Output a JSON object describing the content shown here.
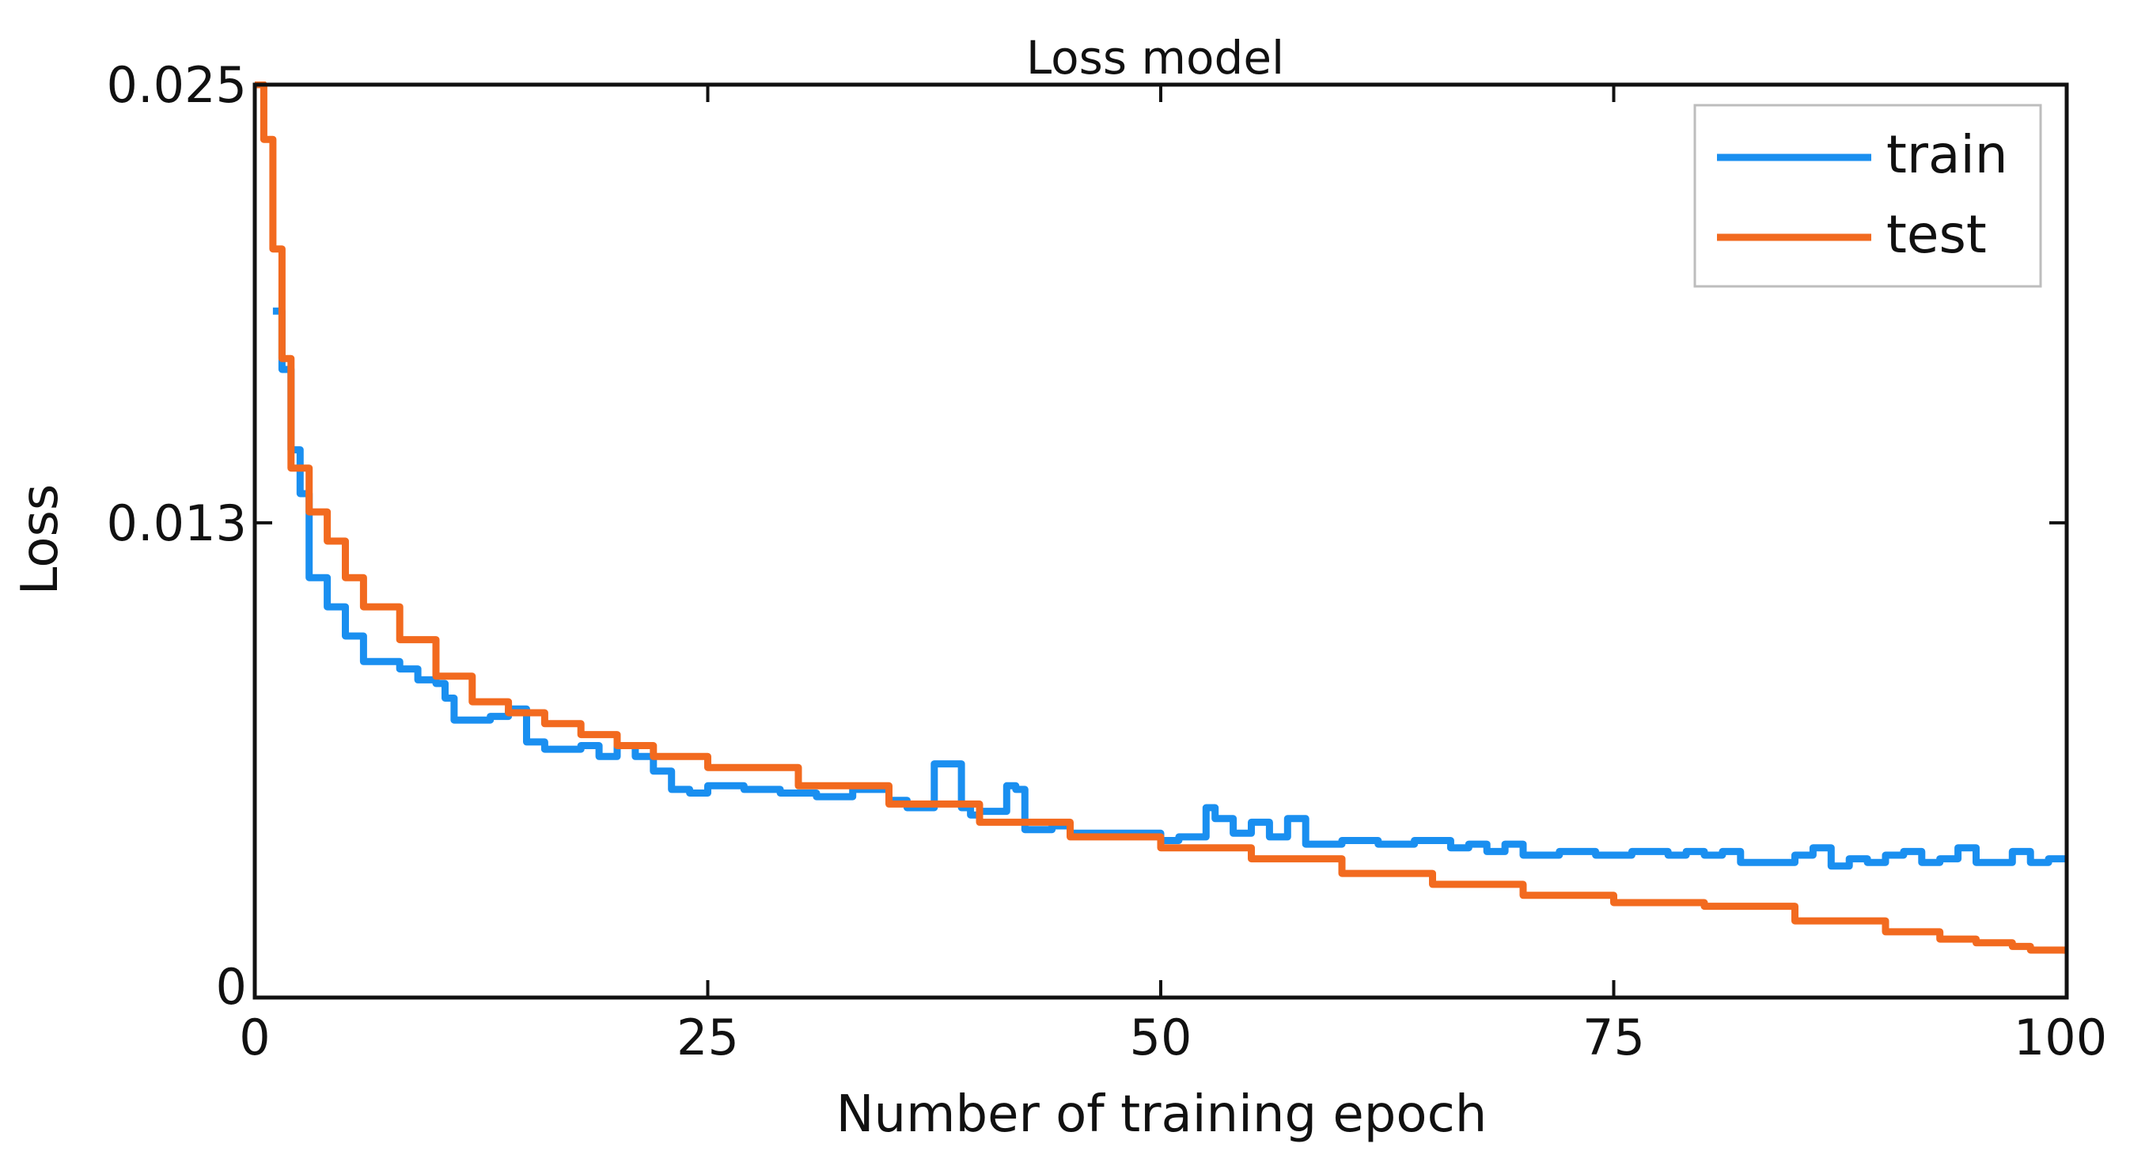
{
  "chart_data": {
    "type": "line",
    "title": "Loss model",
    "xlabel": "Number of training epoch",
    "ylabel": "Loss",
    "xlim": [
      0,
      100
    ],
    "ylim": [
      0,
      0.025
    ],
    "xticks": [
      0,
      25,
      50,
      75,
      100
    ],
    "xtick_labels": [
      "0",
      "25",
      "50",
      "75",
      "100"
    ],
    "yticks": [
      0,
      0.013,
      0.025
    ],
    "ytick_labels": [
      "0",
      "0.013",
      "0.025"
    ],
    "grid": false,
    "legend": {
      "position": "top-right",
      "entries": [
        "train",
        "test"
      ]
    },
    "series": [
      {
        "name": "train",
        "color": "#1a8ff0",
        "x": [
          1,
          1.5,
          2,
          2.5,
          3,
          4,
          5,
          6,
          8,
          9,
          10,
          10.5,
          11,
          12,
          13,
          14,
          15,
          16,
          17,
          18,
          19,
          20,
          21,
          22,
          23,
          24,
          25,
          27,
          29,
          31,
          33,
          35,
          36,
          37,
          37.5,
          38,
          39,
          39.5,
          40,
          41,
          41.5,
          42,
          42.5,
          43,
          44,
          45,
          46,
          48,
          50,
          51,
          52,
          52.5,
          53,
          54,
          55,
          56,
          57,
          58,
          60,
          62,
          64,
          66,
          67,
          68,
          69,
          70,
          72,
          74,
          76,
          78,
          79,
          80,
          81,
          82,
          84,
          85,
          86,
          87,
          88,
          89,
          90,
          91,
          92,
          93,
          94,
          95,
          96,
          97,
          98,
          99,
          100
        ],
        "y": [
          0.0188,
          0.0172,
          0.015,
          0.0138,
          0.0115,
          0.0107,
          0.0099,
          0.0092,
          0.009,
          0.0087,
          0.0086,
          0.0082,
          0.0076,
          0.0076,
          0.0077,
          0.0079,
          0.007,
          0.0068,
          0.0068,
          0.0069,
          0.0066,
          0.0069,
          0.0066,
          0.0062,
          0.0057,
          0.0056,
          0.0058,
          0.0057,
          0.0056,
          0.0055,
          0.0057,
          0.0054,
          0.0052,
          0.0052,
          0.0064,
          0.0064,
          0.0052,
          0.005,
          0.0051,
          0.0051,
          0.0058,
          0.0057,
          0.0046,
          0.0046,
          0.0047,
          0.0045,
          0.0045,
          0.0045,
          0.0043,
          0.0044,
          0.0044,
          0.0052,
          0.0049,
          0.0045,
          0.0048,
          0.0044,
          0.0049,
          0.0042,
          0.0043,
          0.0042,
          0.0043,
          0.0041,
          0.0042,
          0.004,
          0.0042,
          0.0039,
          0.004,
          0.0039,
          0.004,
          0.0039,
          0.004,
          0.0039,
          0.004,
          0.0037,
          0.0037,
          0.0039,
          0.0041,
          0.0036,
          0.0038,
          0.0037,
          0.0039,
          0.004,
          0.0037,
          0.0038,
          0.0041,
          0.0037,
          0.0037,
          0.004,
          0.0037,
          0.0038,
          0.0038
        ]
      },
      {
        "name": "test",
        "color": "#f26a1f",
        "x": [
          0,
          0.5,
          1,
          1.5,
          2,
          3,
          4,
          5,
          6,
          8,
          10,
          12,
          14,
          16,
          18,
          20,
          22,
          25,
          30,
          35,
          40,
          45,
          50,
          55,
          60,
          65,
          70,
          75,
          78,
          80,
          85,
          90,
          93,
          95,
          97,
          98,
          99,
          100
        ],
        "y": [
          0.025,
          0.0235,
          0.0205,
          0.0175,
          0.0145,
          0.0133,
          0.0125,
          0.0115,
          0.0107,
          0.0098,
          0.0088,
          0.0081,
          0.0078,
          0.0075,
          0.0072,
          0.0069,
          0.0066,
          0.0063,
          0.0058,
          0.0053,
          0.0048,
          0.0044,
          0.0041,
          0.0038,
          0.0034,
          0.0031,
          0.0028,
          0.0026,
          0.0026,
          0.0025,
          0.0021,
          0.0018,
          0.0016,
          0.0015,
          0.0014,
          0.0013,
          0.0013,
          0.0012
        ]
      }
    ]
  }
}
